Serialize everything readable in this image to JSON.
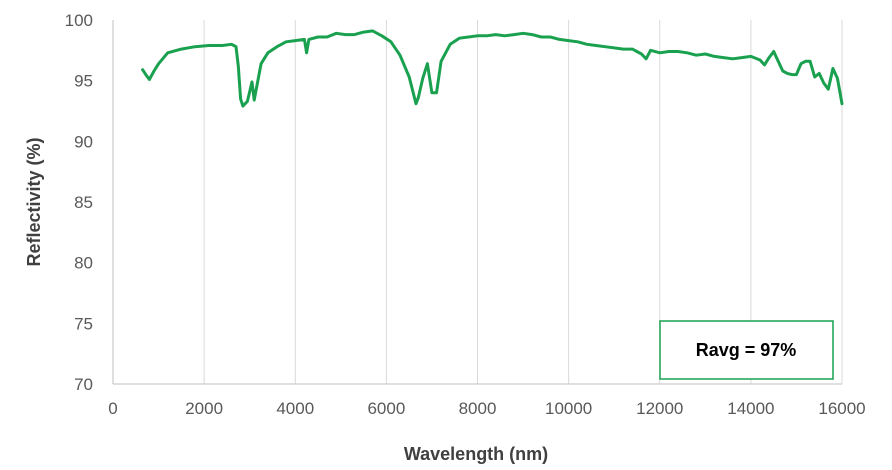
{
  "chart_data": {
    "type": "line",
    "title": "",
    "xlabel": "Wavelength (nm)",
    "ylabel": "Reflectivity (%)",
    "xlim": [
      0,
      16000
    ],
    "ylim": [
      70,
      100
    ],
    "xticks": [
      0,
      2000,
      4000,
      6000,
      8000,
      10000,
      12000,
      14000,
      16000
    ],
    "yticks": [
      70,
      75,
      80,
      85,
      90,
      95,
      100
    ],
    "grid": "vertical",
    "legend": "none",
    "annotation": {
      "text": "Ravg = 97%",
      "placement": "bottom-right"
    },
    "colors": {
      "line": "#1aa150",
      "grid": "#d9d9d9",
      "axis": "#bfbfbf"
    },
    "series": [
      {
        "x": [
          650,
          720,
          800,
          900,
          1000,
          1200,
          1500,
          1800,
          2100,
          2400,
          2600,
          2700,
          2750,
          2800,
          2850,
          2950,
          3050,
          3100,
          3150,
          3250,
          3400,
          3600,
          3800,
          4000,
          4200,
          4250,
          4300,
          4500,
          4700,
          4900,
          5100,
          5300,
          5500,
          5700,
          5900,
          6100,
          6300,
          6500,
          6650,
          6700,
          6800,
          6900,
          7000,
          7100,
          7200,
          7400,
          7600,
          7800,
          8000,
          8200,
          8400,
          8600,
          8800,
          9000,
          9200,
          9400,
          9600,
          9800,
          10000,
          10200,
          10400,
          10600,
          10800,
          11000,
          11200,
          11400,
          11600,
          11700,
          11800,
          12000,
          12200,
          12400,
          12600,
          12800,
          13000,
          13200,
          13400,
          13600,
          13800,
          14000,
          14200,
          14300,
          14400,
          14500,
          14600,
          14700,
          14800,
          14900,
          15000,
          15100,
          15200,
          15300,
          15400,
          15500,
          15600,
          15700,
          15800,
          15900,
          16000
        ],
        "y": [
          95.9,
          95.5,
          95.1,
          95.8,
          96.4,
          97.3,
          97.6,
          97.8,
          97.9,
          97.9,
          98.0,
          97.8,
          96.2,
          93.5,
          92.9,
          93.3,
          94.9,
          93.4,
          94.4,
          96.4,
          97.3,
          97.8,
          98.2,
          98.3,
          98.4,
          97.3,
          98.4,
          98.6,
          98.6,
          98.9,
          98.8,
          98.8,
          99.0,
          99.1,
          98.7,
          98.2,
          97.1,
          95.3,
          93.1,
          93.6,
          95.2,
          96.4,
          94.0,
          94.0,
          96.6,
          98.0,
          98.5,
          98.6,
          98.7,
          98.7,
          98.8,
          98.7,
          98.8,
          98.9,
          98.8,
          98.6,
          98.6,
          98.4,
          98.3,
          98.2,
          98.0,
          97.9,
          97.8,
          97.7,
          97.6,
          97.6,
          97.2,
          96.8,
          97.5,
          97.3,
          97.4,
          97.4,
          97.3,
          97.1,
          97.2,
          97.0,
          96.9,
          96.8,
          96.9,
          97.0,
          96.7,
          96.3,
          96.9,
          97.4,
          96.6,
          95.8,
          95.6,
          95.5,
          95.5,
          96.4,
          96.6,
          96.6,
          95.3,
          95.6,
          94.8,
          94.3,
          96.0,
          95.2,
          93.1
        ]
      }
    ]
  }
}
